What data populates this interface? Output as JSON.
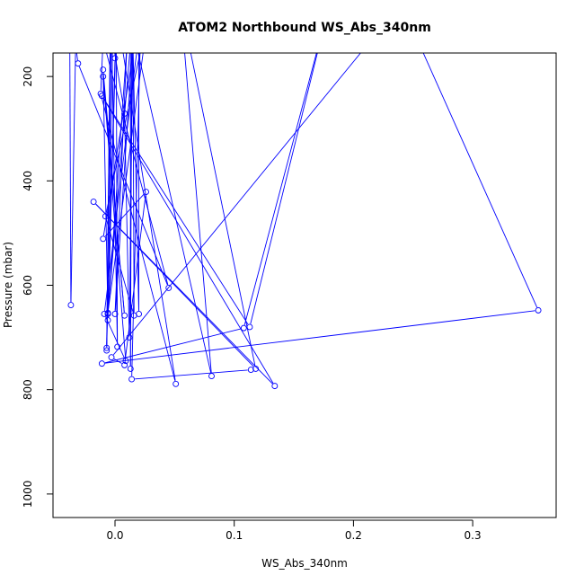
{
  "chart_data": {
    "type": "line",
    "title": "ATOM2 Northbound WS_Abs_340nm",
    "xlabel": "WS_Abs_340nm",
    "ylabel": "Pressure (mbar)",
    "xlim": [
      -0.052,
      0.37
    ],
    "ylim": [
      1045,
      155
    ],
    "y_reversed": true,
    "x_ticks": [
      0.0,
      0.1,
      0.2,
      0.3
    ],
    "x_tick_labels": [
      "0.0",
      "0.1",
      "0.2",
      "0.3"
    ],
    "y_ticks": [
      200,
      400,
      600,
      800,
      1000
    ],
    "y_tick_labels": [
      "200",
      "400",
      "600",
      "800",
      "1000"
    ],
    "grid": false,
    "series": [
      {
        "color": "#0000ff",
        "marker": "open-circle",
        "points": [
          {
            "x": -0.038,
            "y": 100
          },
          {
            "x": -0.037,
            "y": 638
          },
          {
            "x": -0.033,
            "y": 140
          },
          {
            "x": -0.031,
            "y": 175
          },
          {
            "x": 0.045,
            "y": 605
          },
          {
            "x": -0.01,
            "y": 130
          },
          {
            "x": -0.012,
            "y": 233
          },
          {
            "x": 0.051,
            "y": 789
          },
          {
            "x": 0.003,
            "y": 100
          },
          {
            "x": 0.0,
            "y": 165
          },
          {
            "x": -0.007,
            "y": 720
          },
          {
            "x": -0.004,
            "y": 120
          },
          {
            "x": -0.007,
            "y": 725
          },
          {
            "x": -0.003,
            "y": 100
          },
          {
            "x": 0.002,
            "y": 718
          },
          {
            "x": 0.001,
            "y": 110
          },
          {
            "x": -0.006,
            "y": 667
          },
          {
            "x": -0.002,
            "y": 130
          },
          {
            "x": 0.008,
            "y": 271
          },
          {
            "x": 0.012,
            "y": 700
          },
          {
            "x": 0.015,
            "y": 110
          },
          {
            "x": 0.016,
            "y": 658
          },
          {
            "x": -0.008,
            "y": 468
          },
          {
            "x": 0.028,
            "y": 80
          },
          {
            "x": -0.006,
            "y": 653
          },
          {
            "x": -0.01,
            "y": 187
          },
          {
            "x": 0.008,
            "y": 658
          },
          {
            "x": -0.01,
            "y": 200
          },
          {
            "x": 0.009,
            "y": 745
          },
          {
            "x": -0.009,
            "y": 655
          },
          {
            "x": 0.02,
            "y": 120
          },
          {
            "x": 0.02,
            "y": 655
          },
          {
            "x": 0.015,
            "y": 130
          },
          {
            "x": 0.0,
            "y": 655
          },
          {
            "x": 0.01,
            "y": 140
          },
          {
            "x": -0.006,
            "y": 655
          },
          {
            "x": 0.014,
            "y": 110
          },
          {
            "x": 0.013,
            "y": 760
          },
          {
            "x": 0.013,
            "y": 90
          },
          {
            "x": 0.081,
            "y": 774
          },
          {
            "x": 0.055,
            "y": 60
          },
          {
            "x": 0.118,
            "y": 760
          },
          {
            "x": -0.018,
            "y": 440
          },
          {
            "x": 0.134,
            "y": 793
          },
          {
            "x": -0.011,
            "y": 237
          },
          {
            "x": 0.113,
            "y": 680
          },
          {
            "x": 0.18,
            "y": 60
          },
          {
            "x": 0.108,
            "y": 682
          },
          {
            "x": -0.011,
            "y": 750
          },
          {
            "x": 0.355,
            "y": 648
          },
          {
            "x": 0.24,
            "y": 60
          },
          {
            "x": 0.24,
            "y": 60
          },
          {
            "x": -0.003,
            "y": 738
          },
          {
            "x": 0.008,
            "y": 753
          },
          {
            "x": 0.026,
            "y": 421
          },
          {
            "x": -0.01,
            "y": 511
          },
          {
            "x": 0.022,
            "y": 60
          },
          {
            "x": 0.014,
            "y": 780
          },
          {
            "x": 0.114,
            "y": 762
          }
        ]
      }
    ]
  }
}
